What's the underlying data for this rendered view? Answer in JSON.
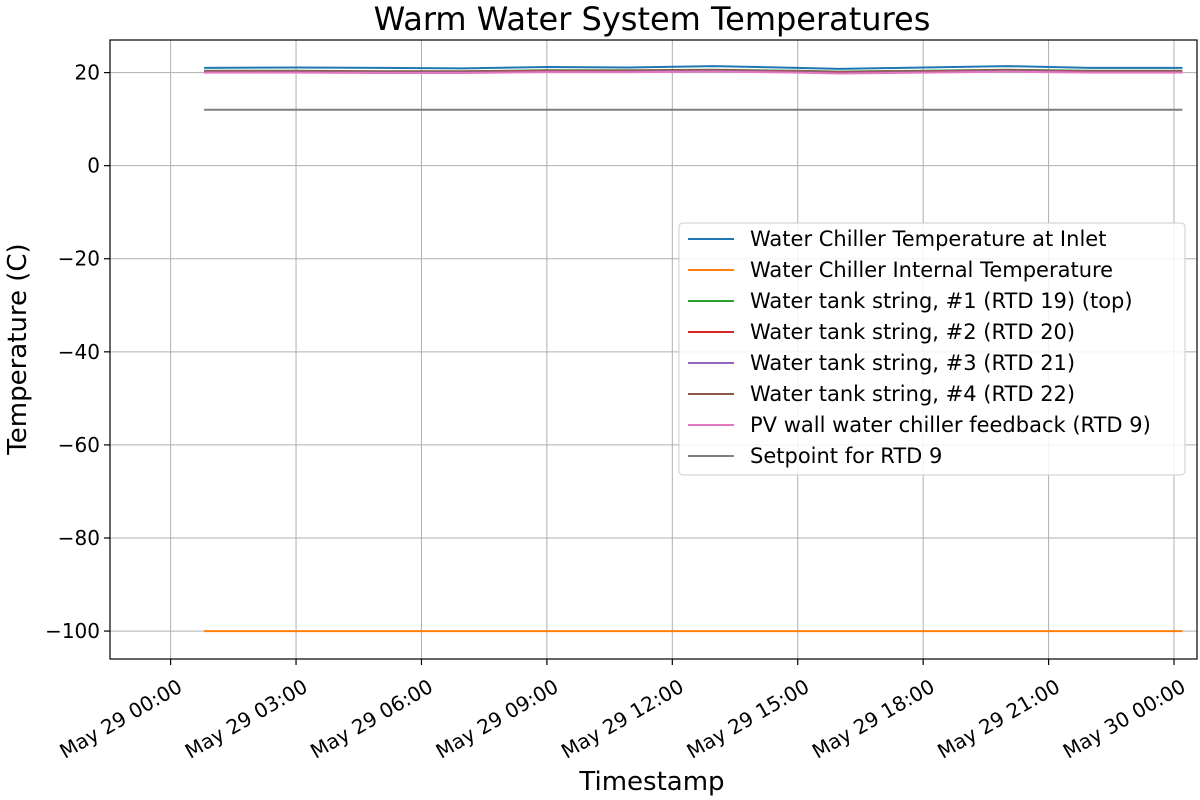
{
  "chart_data": {
    "type": "line",
    "title": "Warm Water System Temperatures",
    "xlabel": "Timestamp",
    "ylabel": "Temperature (C)",
    "x_ticks": [
      "May 29 00:00",
      "May 29 03:00",
      "May 29 06:00",
      "May 29 09:00",
      "May 29 12:00",
      "May 29 15:00",
      "May 29 18:00",
      "May 29 21:00",
      "May 30 00:00"
    ],
    "y_ticks": [
      20,
      0,
      -20,
      -40,
      -60,
      -80,
      -100
    ],
    "y_tick_labels": [
      "20",
      "0",
      "−20",
      "−40",
      "−60",
      "−80",
      "−100"
    ],
    "xlim_hours": [
      -1.45,
      24.55
    ],
    "ylim": [
      -106,
      27
    ],
    "x_hours": [
      0.8,
      3,
      5,
      7,
      9,
      11,
      13,
      15,
      16,
      18,
      20,
      22,
      24.2
    ],
    "grid": true,
    "legend_position": "center-right",
    "series": [
      {
        "name": "Water Chiller Temperature at Inlet",
        "color": "#1f77b4",
        "values": [
          21.0,
          21.1,
          21.0,
          20.9,
          21.2,
          21.1,
          21.4,
          21.0,
          20.8,
          21.1,
          21.4,
          21.0,
          21.0
        ]
      },
      {
        "name": "Water Chiller Internal Temperature",
        "color": "#ff7f0e",
        "values": [
          -100,
          -100,
          -100,
          -100,
          -100,
          -100,
          -100,
          -100,
          -100,
          -100,
          -100,
          -100,
          -100
        ]
      },
      {
        "name": "Water tank string, #1 (RTD 19) (top)",
        "color": "#2ca02c",
        "values": [
          20.4,
          20.4,
          20.3,
          20.3,
          20.5,
          20.5,
          20.6,
          20.4,
          20.2,
          20.4,
          20.6,
          20.4,
          20.4
        ]
      },
      {
        "name": "Water tank string, #2 (RTD 20)",
        "color": "#d62728",
        "values": [
          20.3,
          20.3,
          20.2,
          20.2,
          20.4,
          20.4,
          20.5,
          20.3,
          20.1,
          20.3,
          20.5,
          20.3,
          20.3
        ]
      },
      {
        "name": "Water tank string, #3 (RTD 21)",
        "color": "#9467bd",
        "values": [
          20.2,
          20.2,
          20.1,
          20.1,
          20.3,
          20.3,
          20.4,
          20.2,
          20.0,
          20.2,
          20.4,
          20.2,
          20.2
        ]
      },
      {
        "name": "Water tank string, #4 (RTD 22)",
        "color": "#8c564b",
        "values": [
          20.1,
          20.1,
          20.0,
          20.0,
          20.2,
          20.2,
          20.3,
          20.1,
          19.9,
          20.1,
          20.3,
          20.1,
          20.1
        ]
      },
      {
        "name": "PV wall water chiller feedback (RTD 9)",
        "color": "#e377c2",
        "values": [
          20.0,
          20.0,
          19.9,
          19.9,
          20.1,
          20.1,
          20.2,
          20.0,
          19.8,
          20.0,
          20.2,
          20.0,
          20.0
        ]
      },
      {
        "name": "Setpoint for RTD 9",
        "color": "#7f7f7f",
        "values": [
          12,
          12,
          12,
          12,
          12,
          12,
          12,
          12,
          12,
          12,
          12,
          12,
          12
        ]
      }
    ]
  }
}
